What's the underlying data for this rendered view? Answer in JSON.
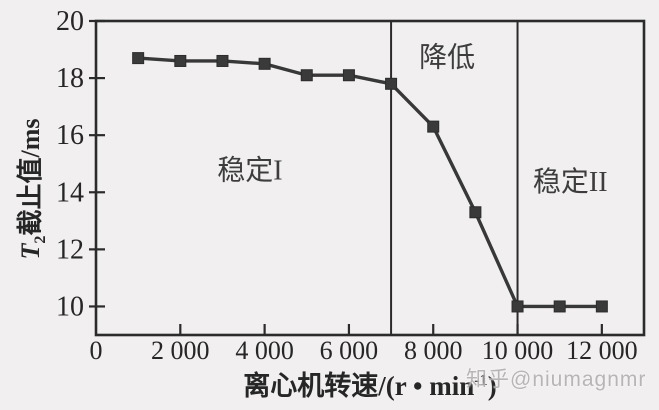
{
  "page": {
    "background": "#f1eff0",
    "watermark": "知乎@niumagnmr"
  },
  "chart_data": {
    "type": "line",
    "title": "",
    "xlabel": {
      "prefix": "离心机转速/(r • min",
      "superscript": "-1",
      "suffix": ")"
    },
    "ylabel": {
      "var": "T",
      "var_sub": "2",
      "rest": "截止值/ms"
    },
    "xlim": [
      0,
      13000
    ],
    "ylim": [
      9,
      20
    ],
    "grid": false,
    "legend": "none",
    "tick_direction": "in",
    "x_ticks": [
      {
        "value": 0,
        "label": "0"
      },
      {
        "value": 2000,
        "label": "2 000"
      },
      {
        "value": 4000,
        "label": "4 000"
      },
      {
        "value": 6000,
        "label": "6 000"
      },
      {
        "value": 8000,
        "label": "8 000"
      },
      {
        "value": 10000,
        "label": "10 000"
      },
      {
        "value": 12000,
        "label": "12 000"
      }
    ],
    "y_ticks": [
      {
        "value": 10,
        "label": "10"
      },
      {
        "value": 12,
        "label": "12"
      },
      {
        "value": 14,
        "label": "14"
      },
      {
        "value": 16,
        "label": "16"
      },
      {
        "value": 18,
        "label": "18"
      },
      {
        "value": 20,
        "label": "20"
      }
    ],
    "dividers_x": [
      7000,
      10000
    ],
    "regions": [
      {
        "label": "稳定I",
        "x": 3650,
        "y": 14.8
      },
      {
        "label": "降低",
        "x": 8330,
        "y": 18.75
      },
      {
        "label": "稳定II",
        "x": 11250,
        "y": 14.4
      }
    ],
    "series": [
      {
        "x": [
          1000,
          2000,
          3000,
          4000,
          5000,
          6000,
          7000,
          8000,
          9000,
          10000,
          11000,
          12000
        ],
        "y": [
          18.7,
          18.6,
          18.6,
          18.5,
          18.1,
          18.1,
          17.8,
          16.3,
          13.3,
          10.0,
          10.0,
          10.0
        ]
      }
    ],
    "marker": "square",
    "colors": {
      "line": "#383838",
      "marker": "#3a3a3a",
      "axis": "#2b2b2b",
      "text": "#262626",
      "region_text": "#3d3d3d"
    }
  }
}
